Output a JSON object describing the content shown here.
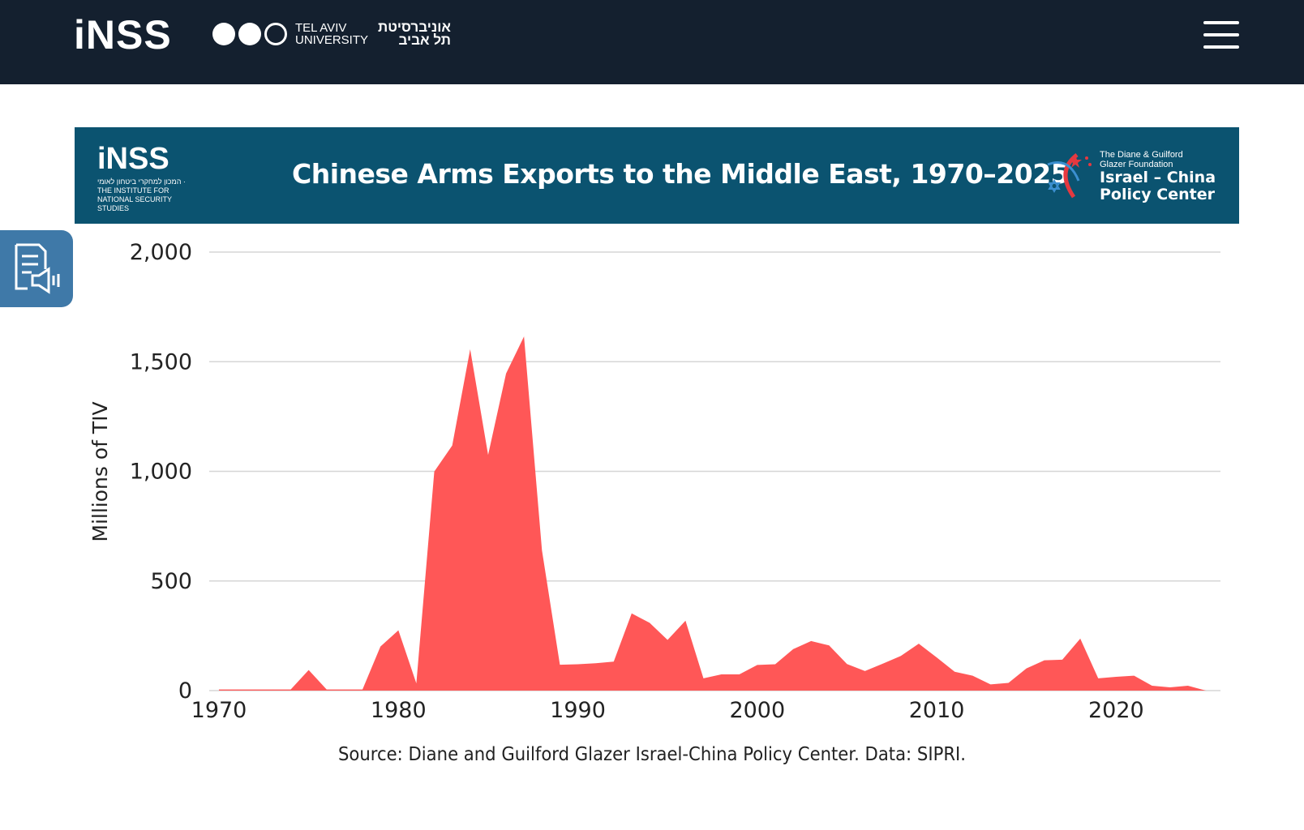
{
  "header": {
    "logo": "iNSS",
    "partner_en_1": "TEL AVIV",
    "partner_en_2": "UNIVERSITY",
    "partner_he_1": "אוניברסיטת",
    "partner_he_2": "תל אביב",
    "menu_icon": "hamburger-icon"
  },
  "banner": {
    "logo": "iNSS",
    "logo_sub": "המכון למחקרי ביטחון לאומי · THE INSTITUTE FOR NATIONAL SECURITY STUDIES",
    "title": "Chinese Arms Exports to the Middle East, 1970–2025",
    "partner_line1": "The Diane & Guilford",
    "partner_line2": "Glazer Foundation",
    "partner_line3": "Israel – China",
    "partner_line4": "Policy Center",
    "color": "#0b5370"
  },
  "tts_button": {
    "icon": "text-to-speech-icon"
  },
  "chart_data": {
    "type": "area",
    "title": "Chinese Arms Exports to the Middle East, 1970–2025",
    "ylabel": "Millions of TIV",
    "xlabel": "",
    "ylim": [
      0,
      2000
    ],
    "xlim": [
      1970,
      2025
    ],
    "yticks": [
      0,
      500,
      1000,
      1500,
      2000
    ],
    "ytick_labels": [
      "0",
      "500",
      "1,000",
      "1,500",
      "2,000"
    ],
    "xticks": [
      1970,
      1980,
      1990,
      2000,
      2010,
      2020
    ],
    "xtick_labels": [
      "1970",
      "1980",
      "1990",
      "2000",
      "2010",
      "2020"
    ],
    "grid": "horizontal",
    "color": "#ff5757",
    "x": [
      1970,
      1971,
      1972,
      1973,
      1974,
      1975,
      1976,
      1977,
      1978,
      1979,
      1980,
      1981,
      1982,
      1983,
      1984,
      1985,
      1986,
      1987,
      1988,
      1989,
      1990,
      1991,
      1992,
      1993,
      1994,
      1995,
      1996,
      1997,
      1998,
      1999,
      2000,
      2001,
      2002,
      2003,
      2004,
      2005,
      2006,
      2007,
      2008,
      2009,
      2010,
      2011,
      2012,
      2013,
      2014,
      2015,
      2016,
      2017,
      2018,
      2019,
      2020,
      2021,
      2022,
      2023,
      2024,
      2025
    ],
    "values": [
      5,
      5,
      5,
      5,
      5,
      94,
      5,
      5,
      5,
      201,
      275,
      33,
      999,
      1118,
      1557,
      1075,
      1446,
      1615,
      640,
      118,
      120,
      125,
      132,
      352,
      309,
      231,
      319,
      56,
      74,
      74,
      117,
      120,
      189,
      226,
      206,
      121,
      89,
      123,
      158,
      214,
      151,
      86,
      68,
      28,
      35,
      101,
      138,
      141,
      237,
      56,
      63,
      68,
      22,
      15,
      22,
      0
    ]
  },
  "source": "Source: Diane and Guilford Glazer Israel-China Policy Center. Data: SIPRI."
}
